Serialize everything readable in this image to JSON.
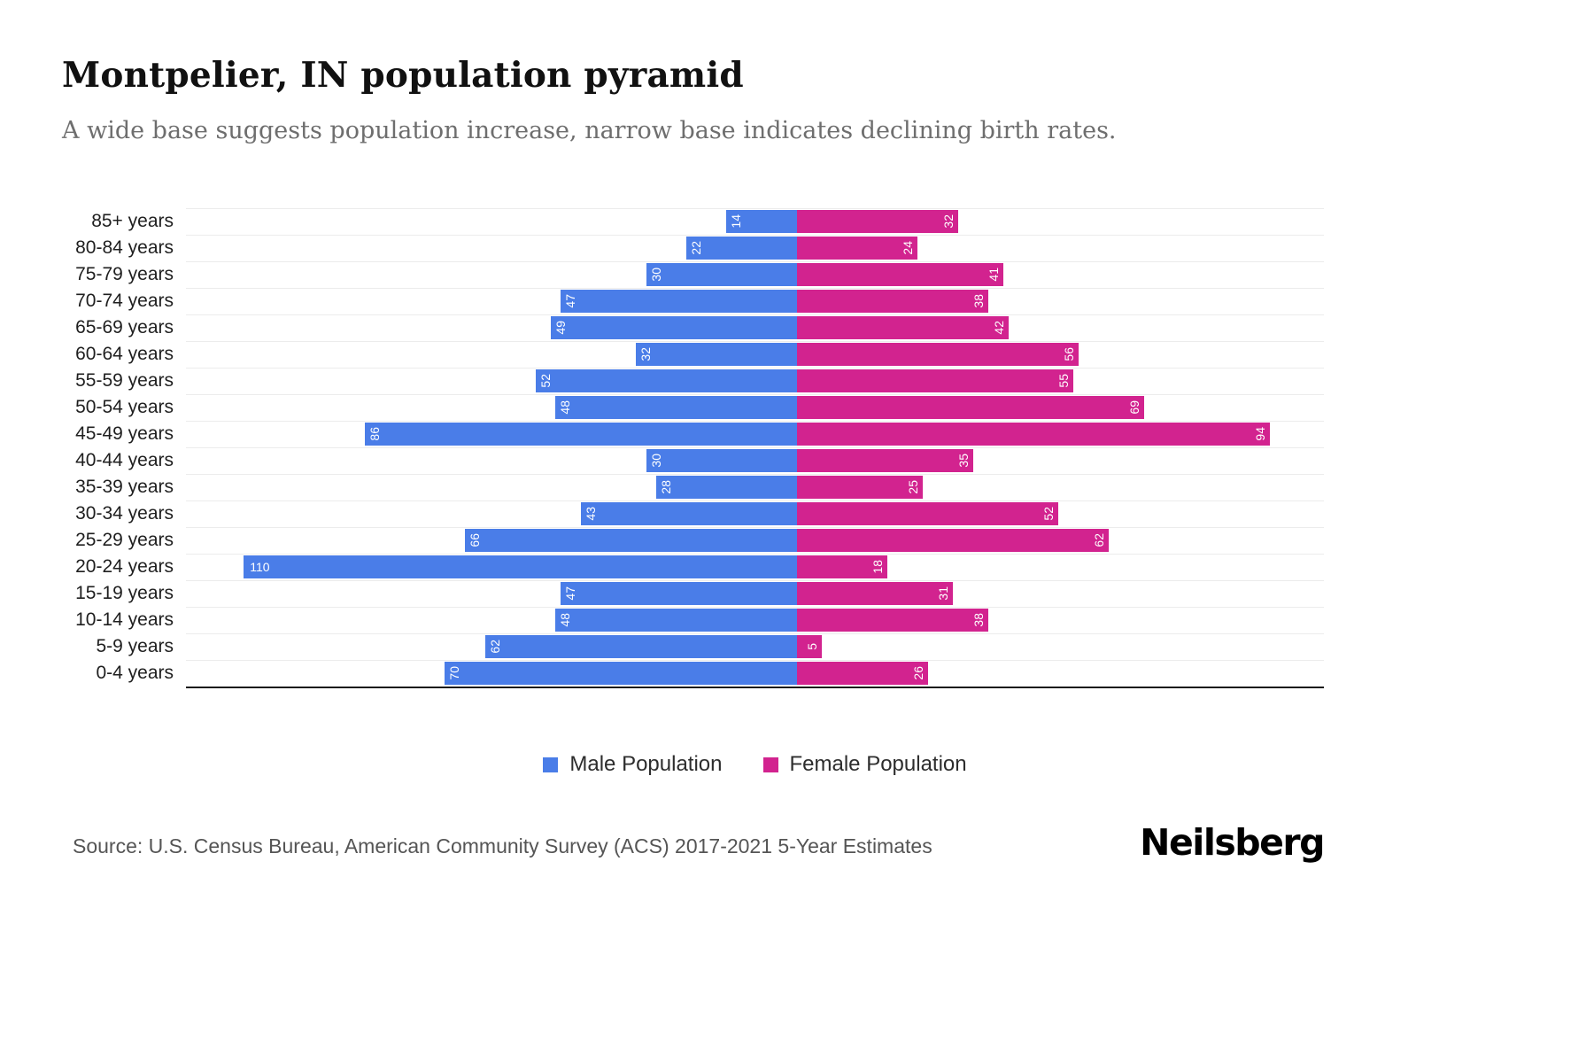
{
  "header": {
    "title": "Montpelier, IN population pyramid",
    "subtitle": "A wide base suggests population increase, narrow base indicates declining birth rates."
  },
  "legend": {
    "male_label": "Male Population",
    "female_label": "Female Population"
  },
  "footer": {
    "source": "Source: U.S. Census Bureau, American Community Survey (ACS) 2017-2021 5-Year Estimates",
    "brand": "Neilsberg"
  },
  "colors": {
    "male": "#4A7DE8",
    "female": "#D2238F"
  },
  "chart_data": {
    "type": "bar",
    "variant": "population-pyramid",
    "orientation": "horizontal-diverging",
    "grid": "horizontal-light",
    "legend_position": "bottom-center",
    "categories": [
      "85+ years",
      "80-84 years",
      "75-79 years",
      "70-74 years",
      "65-69 years",
      "60-64 years",
      "55-59 years",
      "50-54 years",
      "45-49 years",
      "40-44 years",
      "35-39 years",
      "30-34 years",
      "25-29 years",
      "20-24 years",
      "15-19 years",
      "10-14 years",
      "5-9 years",
      "0-4 years"
    ],
    "series": [
      {
        "name": "Male Population",
        "values": [
          14,
          22,
          30,
          47,
          49,
          32,
          52,
          48,
          86,
          30,
          28,
          43,
          66,
          110,
          47,
          48,
          62,
          70
        ]
      },
      {
        "name": "Female Population",
        "values": [
          32,
          24,
          41,
          38,
          42,
          56,
          55,
          69,
          94,
          35,
          25,
          52,
          62,
          18,
          31,
          38,
          5,
          26
        ]
      }
    ],
    "xlim_male": [
      0,
      121
    ],
    "xlim_female": [
      0,
      105
    ]
  }
}
